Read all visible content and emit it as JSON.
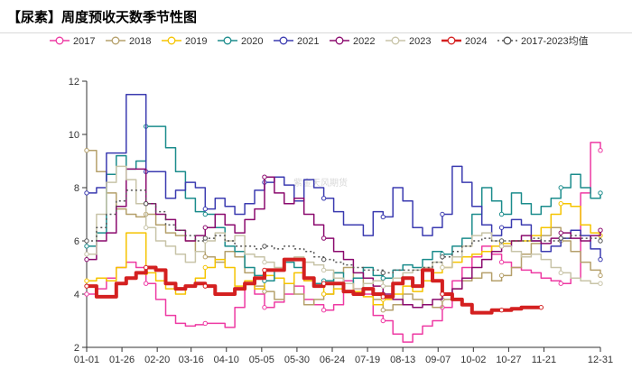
{
  "title": "【尿素】周度预收天数季节性图",
  "chart_data": {
    "type": "line",
    "title": "【尿素】周度预收天数季节性图",
    "xlabel": "",
    "ylabel": "",
    "xlim": [
      "01-01",
      "12-31"
    ],
    "ylim": [
      2,
      12
    ],
    "yticks": [
      2,
      4,
      6,
      8,
      10,
      12
    ],
    "xtick_labels": [
      "01-01",
      "01-26",
      "02-20",
      "03-16",
      "04-10",
      "05-05",
      "05-30",
      "06-24",
      "07-19",
      "08-13",
      "09-07",
      "10-02",
      "10-27",
      "11-21",
      "12-31"
    ],
    "grid": false,
    "legend_position": "top",
    "watermark": "紫金天风期货",
    "series": [
      {
        "name": "2017",
        "color": "#ee3aa3",
        "width": 1.5,
        "dash": "",
        "x": [
          "01-01",
          "01-08",
          "01-15",
          "01-22",
          "01-29",
          "02-05",
          "02-12",
          "02-19",
          "02-26",
          "03-05",
          "03-12",
          "03-19",
          "03-26",
          "04-02",
          "04-09",
          "04-16",
          "04-23",
          "04-30",
          "05-07",
          "05-14",
          "05-21",
          "05-28",
          "06-04",
          "06-11",
          "06-18",
          "06-25",
          "07-02",
          "07-09",
          "07-16",
          "07-23",
          "07-30",
          "08-06",
          "08-13",
          "08-20",
          "08-27",
          "09-03",
          "09-10",
          "09-17",
          "09-24",
          "10-01",
          "10-08",
          "10-15",
          "10-22",
          "10-29",
          "11-05",
          "11-12",
          "11-19",
          "11-26",
          "12-03",
          "12-10",
          "12-17",
          "12-24",
          "12-31"
        ],
        "values": [
          4.0,
          4.2,
          4.6,
          5.0,
          5.2,
          5.0,
          4.4,
          3.8,
          3.2,
          2.9,
          2.8,
          2.85,
          2.9,
          2.9,
          2.75,
          3.5,
          4.5,
          4.0,
          3.5,
          3.7,
          4.0,
          4.3,
          3.8,
          3.6,
          3.4,
          3.6,
          4.5,
          4.2,
          4.0,
          3.2,
          3.0,
          2.5,
          2.2,
          2.5,
          2.8,
          3.0,
          3.5,
          4.5,
          5.0,
          5.4,
          5.8,
          5.5,
          5.2,
          5.0,
          4.9,
          4.8,
          4.6,
          4.5,
          4.4,
          4.6,
          7.8,
          9.7,
          9.4
        ]
      },
      {
        "name": "2018",
        "color": "#b5a06b",
        "width": 1.5,
        "dash": "",
        "x": [
          "01-01",
          "01-08",
          "01-15",
          "01-22",
          "01-29",
          "02-05",
          "02-12",
          "02-19",
          "02-26",
          "03-05",
          "03-12",
          "03-19",
          "03-26",
          "04-02",
          "04-09",
          "04-16",
          "04-23",
          "04-30",
          "05-07",
          "05-14",
          "05-21",
          "05-28",
          "06-04",
          "06-11",
          "06-18",
          "06-25",
          "07-02",
          "07-09",
          "07-16",
          "07-23",
          "07-30",
          "08-06",
          "08-13",
          "08-20",
          "08-27",
          "09-03",
          "09-10",
          "09-17",
          "09-24",
          "10-01",
          "10-08",
          "10-15",
          "10-22",
          "10-29",
          "11-05",
          "11-12",
          "11-19",
          "11-26",
          "12-03",
          "12-10",
          "12-17",
          "12-24",
          "12-31"
        ],
        "values": [
          9.4,
          8.6,
          7.8,
          7.2,
          7.0,
          6.9,
          7.0,
          6.6,
          6.3,
          6.2,
          6.0,
          5.6,
          5.4,
          5.2,
          5.6,
          5.4,
          4.8,
          4.3,
          4.1,
          3.8,
          4.4,
          4.0,
          3.6,
          3.8,
          4.0,
          4.8,
          5.0,
          4.6,
          4.2,
          3.8,
          3.4,
          3.6,
          4.0,
          3.8,
          3.6,
          3.5,
          3.8,
          4.2,
          4.5,
          4.6,
          4.8,
          4.5,
          4.7,
          5.0,
          5.5,
          5.9,
          6.2,
          6.5,
          6.0,
          5.6,
          5.2,
          4.9,
          4.7
        ]
      },
      {
        "name": "2019",
        "color": "#f5c400",
        "width": 1.5,
        "dash": "",
        "x": [
          "01-01",
          "01-08",
          "01-15",
          "01-22",
          "01-29",
          "02-05",
          "02-12",
          "02-19",
          "02-26",
          "03-05",
          "03-12",
          "03-19",
          "03-26",
          "04-02",
          "04-09",
          "04-16",
          "04-23",
          "04-30",
          "05-07",
          "05-14",
          "05-21",
          "05-28",
          "06-04",
          "06-11",
          "06-18",
          "06-25",
          "07-02",
          "07-09",
          "07-16",
          "07-23",
          "07-30",
          "08-06",
          "08-13",
          "08-20",
          "08-27",
          "09-03",
          "09-10",
          "09-17",
          "09-24",
          "10-01",
          "10-08",
          "10-15",
          "10-22",
          "10-29",
          "11-05",
          "11-12",
          "11-19",
          "11-26",
          "12-03",
          "12-10",
          "12-17",
          "12-24",
          "12-31"
        ],
        "values": [
          4.5,
          4.6,
          4.5,
          5.0,
          6.3,
          6.3,
          4.8,
          4.5,
          4.2,
          4.0,
          4.3,
          4.6,
          5.0,
          5.3,
          5.0,
          4.3,
          4.5,
          4.2,
          4.7,
          4.6,
          4.4,
          4.8,
          4.5,
          4.3,
          4.0,
          4.2,
          4.4,
          4.1,
          3.9,
          3.6,
          3.8,
          4.0,
          4.3,
          4.1,
          4.5,
          4.8,
          5.0,
          5.2,
          5.4,
          5.5,
          5.6,
          5.8,
          5.9,
          6.0,
          6.0,
          6.2,
          6.5,
          7.0,
          7.4,
          7.3,
          6.6,
          6.3,
          6.2
        ]
      },
      {
        "name": "2020",
        "color": "#1b8c8c",
        "width": 1.5,
        "dash": "",
        "x": [
          "01-01",
          "01-08",
          "01-15",
          "01-22",
          "01-29",
          "02-05",
          "02-12",
          "02-19",
          "02-26",
          "03-05",
          "03-12",
          "03-19",
          "03-26",
          "04-02",
          "04-09",
          "04-16",
          "04-23",
          "04-30",
          "05-07",
          "05-14",
          "05-21",
          "05-28",
          "06-04",
          "06-11",
          "06-18",
          "06-25",
          "07-02",
          "07-09",
          "07-16",
          "07-23",
          "07-30",
          "08-06",
          "08-13",
          "08-20",
          "08-27",
          "09-03",
          "09-10",
          "09-17",
          "09-24",
          "10-01",
          "10-08",
          "10-15",
          "10-22",
          "10-29",
          "11-05",
          "11-12",
          "11-19",
          "11-26",
          "12-03",
          "12-10",
          "12-17",
          "12-24",
          "12-31"
        ],
        "values": [
          5.8,
          6.3,
          8.5,
          9.2,
          8.7,
          9.0,
          10.3,
          10.3,
          9.5,
          8.6,
          7.6,
          7.1,
          7.0,
          6.5,
          5.8,
          5.6,
          5.0,
          4.7,
          4.5,
          4.9,
          5.2,
          5.0,
          4.6,
          4.4,
          4.5,
          4.8,
          4.4,
          4.6,
          5.0,
          4.7,
          4.6,
          4.9,
          5.1,
          5.0,
          5.3,
          5.6,
          5.5,
          5.8,
          6.1,
          7.0,
          8.0,
          7.5,
          7.0,
          7.8,
          7.4,
          7.0,
          7.3,
          7.6,
          8.0,
          8.5,
          8.0,
          7.6,
          7.8
        ]
      },
      {
        "name": "2021",
        "color": "#3b3bb0",
        "width": 1.5,
        "dash": "",
        "x": [
          "01-01",
          "01-08",
          "01-15",
          "01-22",
          "01-29",
          "02-05",
          "02-12",
          "02-19",
          "02-26",
          "03-05",
          "03-12",
          "03-19",
          "03-26",
          "04-02",
          "04-09",
          "04-16",
          "04-23",
          "04-30",
          "05-07",
          "05-14",
          "05-21",
          "05-28",
          "06-04",
          "06-11",
          "06-18",
          "06-25",
          "07-02",
          "07-09",
          "07-16",
          "07-23",
          "07-30",
          "08-06",
          "08-13",
          "08-20",
          "08-27",
          "09-03",
          "09-10",
          "09-17",
          "09-24",
          "10-01",
          "10-08",
          "10-15",
          "10-22",
          "10-29",
          "11-05",
          "11-12",
          "11-19",
          "11-26",
          "12-03",
          "12-10",
          "12-17",
          "12-24",
          "12-31"
        ],
        "values": [
          7.8,
          8.0,
          9.3,
          9.3,
          11.5,
          11.5,
          8.6,
          8.6,
          7.6,
          7.9,
          8.2,
          8.0,
          7.2,
          7.6,
          7.3,
          7.0,
          7.4,
          7.9,
          8.2,
          8.4,
          8.1,
          7.5,
          8.3,
          8.0,
          7.6,
          7.1,
          6.6,
          6.6,
          6.2,
          7.1,
          6.9,
          8.0,
          7.5,
          6.5,
          6.2,
          6.5,
          7.0,
          8.8,
          8.2,
          7.3,
          6.6,
          6.2,
          6.5,
          6.8,
          6.6,
          6.0,
          5.6,
          5.8,
          6.1,
          6.4,
          6.2,
          5.7,
          5.3
        ]
      },
      {
        "name": "2022",
        "color": "#8b0a6e",
        "width": 1.5,
        "dash": "",
        "x": [
          "01-01",
          "01-08",
          "01-15",
          "01-22",
          "01-29",
          "02-05",
          "02-12",
          "02-19",
          "02-26",
          "03-05",
          "03-12",
          "03-19",
          "03-26",
          "04-02",
          "04-09",
          "04-16",
          "04-23",
          "04-30",
          "05-07",
          "05-14",
          "05-21",
          "05-28",
          "06-04",
          "06-11",
          "06-18",
          "06-25",
          "07-02",
          "07-09",
          "07-16",
          "07-23",
          "07-30",
          "08-06",
          "08-13",
          "08-20",
          "08-27",
          "09-03",
          "09-10",
          "09-17",
          "09-24",
          "10-01",
          "10-08",
          "10-15",
          "10-22",
          "10-29",
          "11-05",
          "11-12",
          "11-19",
          "11-26",
          "12-03",
          "12-10",
          "12-17",
          "12-24",
          "12-31"
        ],
        "values": [
          5.3,
          6.0,
          6.3,
          7.3,
          8.7,
          8.7,
          7.4,
          7.0,
          6.8,
          6.4,
          6.0,
          6.2,
          6.5,
          7.0,
          6.6,
          6.3,
          6.8,
          7.2,
          8.4,
          7.8,
          7.4,
          7.6,
          7.0,
          6.6,
          6.1,
          5.6,
          5.3,
          4.8,
          4.6,
          4.3,
          4.0,
          3.8,
          3.6,
          3.5,
          3.6,
          3.8,
          4.0,
          4.2,
          4.6,
          5.0,
          5.3,
          5.6,
          5.8,
          6.0,
          6.2,
          6.0,
          5.9,
          6.1,
          6.3,
          6.1,
          6.0,
          6.2,
          6.4
        ]
      },
      {
        "name": "2023",
        "color": "#c8c4a8",
        "width": 1.5,
        "dash": "",
        "x": [
          "01-01",
          "01-08",
          "01-15",
          "01-22",
          "01-29",
          "02-05",
          "02-12",
          "02-19",
          "02-26",
          "03-05",
          "03-12",
          "03-19",
          "03-26",
          "04-02",
          "04-09",
          "04-16",
          "04-23",
          "04-30",
          "05-07",
          "05-14",
          "05-21",
          "05-28",
          "06-04",
          "06-11",
          "06-18",
          "06-25",
          "07-02",
          "07-09",
          "07-16",
          "07-23",
          "07-30",
          "08-06",
          "08-13",
          "08-20",
          "08-27",
          "09-03",
          "09-10",
          "09-17",
          "09-24",
          "10-01",
          "10-08",
          "10-15",
          "10-22",
          "10-29",
          "11-05",
          "11-12",
          "11-19",
          "11-26",
          "12-03",
          "12-10",
          "12-17",
          "12-24",
          "12-31"
        ],
        "values": [
          5.5,
          7.0,
          8.2,
          8.8,
          8.3,
          7.4,
          6.5,
          6.0,
          5.8,
          5.5,
          5.2,
          5.6,
          6.0,
          6.3,
          6.0,
          6.2,
          5.5,
          5.4,
          5.2,
          5.0,
          5.3,
          5.4,
          5.2,
          5.1,
          4.9,
          4.6,
          4.4,
          4.2,
          4.4,
          4.5,
          4.3,
          4.6,
          4.8,
          4.9,
          5.0,
          5.2,
          5.0,
          5.4,
          5.8,
          6.2,
          6.3,
          6.0,
          5.8,
          5.6,
          5.4,
          5.5,
          5.3,
          5.0,
          4.8,
          4.6,
          4.5,
          4.4,
          4.4
        ]
      },
      {
        "name": "2024",
        "color": "#d42020",
        "width": 4,
        "dash": "",
        "x": [
          "01-01",
          "01-08",
          "01-15",
          "01-22",
          "01-29",
          "02-05",
          "02-12",
          "02-19",
          "02-26",
          "03-05",
          "03-12",
          "03-19",
          "03-26",
          "04-02",
          "04-09",
          "04-16",
          "04-23",
          "04-30",
          "05-07",
          "05-14",
          "05-21",
          "05-28",
          "06-04",
          "06-11",
          "06-18",
          "06-25",
          "07-02",
          "07-09",
          "07-16",
          "07-23",
          "07-30",
          "08-06",
          "08-13",
          "08-20",
          "08-27",
          "09-03",
          "09-10",
          "09-17",
          "09-24",
          "10-01",
          "10-08",
          "10-15",
          "10-22",
          "10-29",
          "11-05",
          "11-12",
          "11-19"
        ],
        "values": [
          4.3,
          3.9,
          3.9,
          4.4,
          4.6,
          4.8,
          5.0,
          4.9,
          4.4,
          4.2,
          4.3,
          4.4,
          4.3,
          4.0,
          4.0,
          4.2,
          4.4,
          4.6,
          4.9,
          4.9,
          5.3,
          5.3,
          4.6,
          4.3,
          4.4,
          4.4,
          4.1,
          4.0,
          4.2,
          4.0,
          3.9,
          4.4,
          4.6,
          4.3,
          4.9,
          4.5,
          4.0,
          3.8,
          3.6,
          3.3,
          3.3,
          3.4,
          3.4,
          3.45,
          3.5,
          3.5,
          3.5
        ]
      },
      {
        "name": "2017-2023均值",
        "color": "#555555",
        "width": 1.5,
        "dash": "2,3",
        "x": [
          "01-01",
          "01-08",
          "01-15",
          "01-22",
          "01-29",
          "02-05",
          "02-12",
          "02-19",
          "02-26",
          "03-05",
          "03-12",
          "03-19",
          "03-26",
          "04-02",
          "04-09",
          "04-16",
          "04-23",
          "04-30",
          "05-07",
          "05-14",
          "05-21",
          "05-28",
          "06-04",
          "06-11",
          "06-18",
          "06-25",
          "07-02",
          "07-09",
          "07-16",
          "07-23",
          "07-30",
          "08-06",
          "08-13",
          "08-20",
          "08-27",
          "09-03",
          "09-10",
          "09-17",
          "09-24",
          "10-01",
          "10-08",
          "10-15",
          "10-22",
          "10-29",
          "11-05",
          "11-12",
          "11-19",
          "11-26",
          "12-03",
          "12-10",
          "12-17",
          "12-24",
          "12-31"
        ],
        "values": [
          6.0,
          6.5,
          7.0,
          7.5,
          7.9,
          7.9,
          7.4,
          7.1,
          6.6,
          6.4,
          6.2,
          6.0,
          6.1,
          6.2,
          6.0,
          5.8,
          5.8,
          5.7,
          5.8,
          5.7,
          5.8,
          5.7,
          5.6,
          5.4,
          5.3,
          5.2,
          5.1,
          5.0,
          4.9,
          4.9,
          4.8,
          4.9,
          4.9,
          4.9,
          5.0,
          5.2,
          5.4,
          5.6,
          5.8,
          6.0,
          6.1,
          6.0,
          6.0,
          6.0,
          6.0,
          6.1,
          6.0,
          6.0,
          6.1,
          6.2,
          6.1,
          6.1,
          6.0
        ]
      }
    ]
  }
}
